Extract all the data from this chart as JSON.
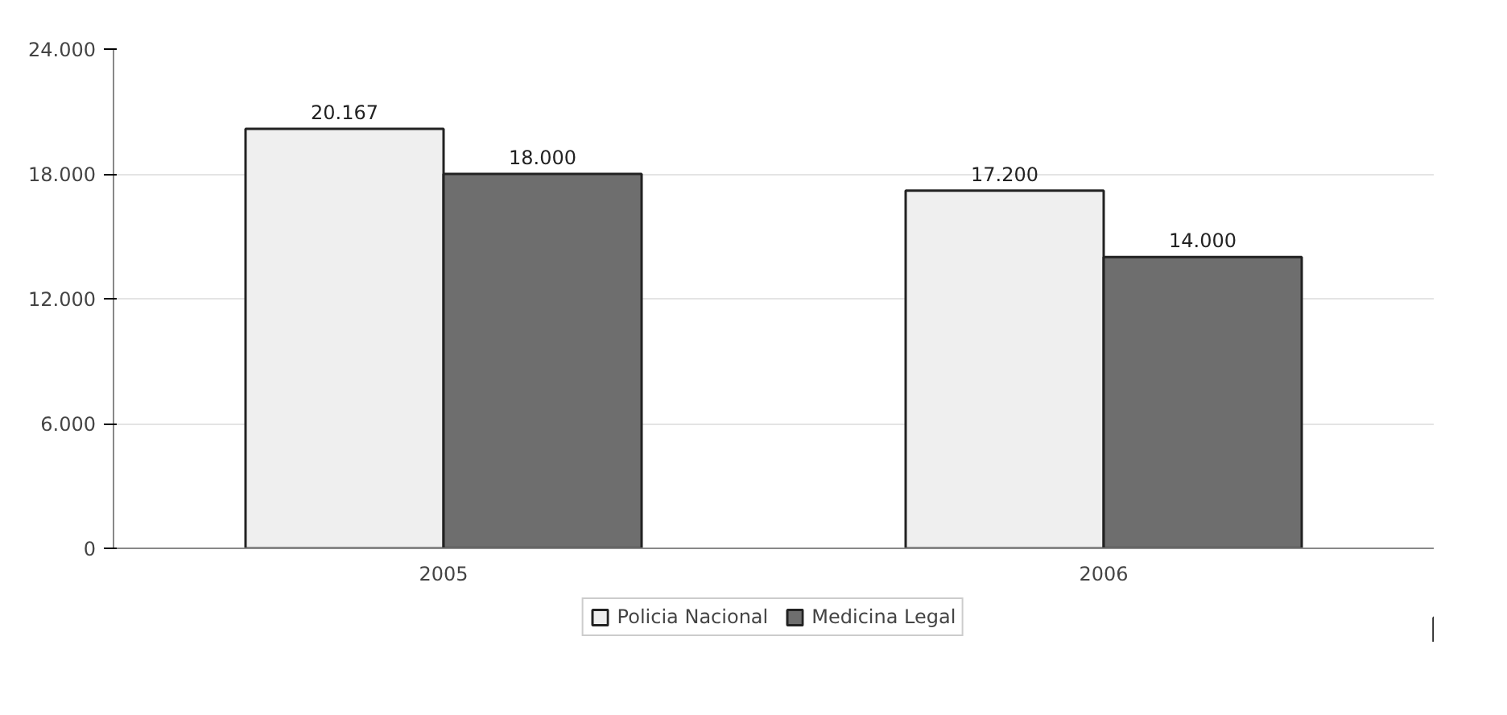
{
  "chart_data": {
    "type": "bar",
    "categories": [
      "2005",
      "2006"
    ],
    "series": [
      {
        "name": "Policia Nacional",
        "color": "#efefef",
        "values": [
          20167,
          17200
        ],
        "value_labels": [
          "20.167",
          "17.200"
        ]
      },
      {
        "name": "Medicina Legal",
        "color": "#6e6e6e",
        "values": [
          18000,
          14000
        ],
        "value_labels": [
          "18.000",
          "14.000"
        ]
      }
    ],
    "ylim": [
      0,
      24000
    ],
    "yticks": [
      {
        "value": 0,
        "label": "0"
      },
      {
        "value": 6000,
        "label": "6.000"
      },
      {
        "value": 12000,
        "label": "12.000"
      },
      {
        "value": 18000,
        "label": "18.000"
      },
      {
        "value": 24000,
        "label": "24.000"
      }
    ],
    "grid": "y",
    "legend": "bottom"
  }
}
